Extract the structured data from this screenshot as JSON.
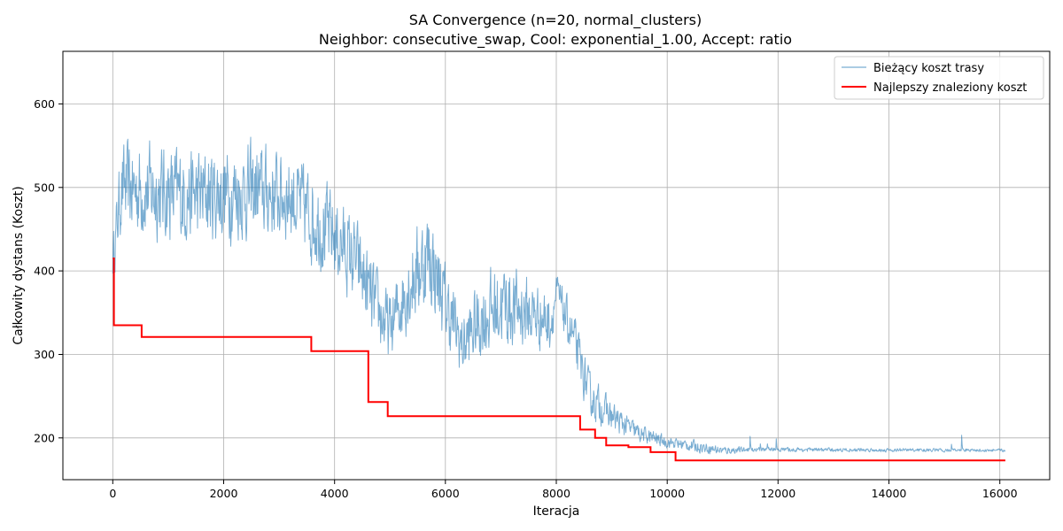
{
  "chart_data": {
    "type": "line",
    "title": "SA Convergence (n=20, normal_clusters)",
    "subtitle": "Neighbor: consecutive_swap, Cool: exponential_1.00, Accept: ratio",
    "xlabel": "Iteracja",
    "ylabel": "Całkowity dystans (Koszt)",
    "xlim": [
      -900,
      16900
    ],
    "ylim": [
      150,
      663
    ],
    "xticks": [
      0,
      2000,
      4000,
      6000,
      8000,
      10000,
      12000,
      14000,
      16000
    ],
    "yticks": [
      200,
      300,
      400,
      500,
      600
    ],
    "grid": true,
    "legend_position": "top-right",
    "series": [
      {
        "name": "Bieżący koszt trasy",
        "color": "#1f77b4",
        "opacity": 0.6,
        "kind": "noisy",
        "anchors": [
          [
            0,
            415,
            30
          ],
          [
            150,
            500,
            60
          ],
          [
            700,
            495,
            65
          ],
          [
            1500,
            490,
            65
          ],
          [
            2500,
            495,
            65
          ],
          [
            3200,
            490,
            60
          ],
          [
            3600,
            465,
            65
          ],
          [
            4000,
            440,
            60
          ],
          [
            4400,
            410,
            55
          ],
          [
            4700,
            360,
            55
          ],
          [
            5000,
            330,
            45
          ],
          [
            5300,
            380,
            60
          ],
          [
            5700,
            420,
            70
          ],
          [
            6000,
            360,
            55
          ],
          [
            6300,
            310,
            45
          ],
          [
            6600,
            340,
            55
          ],
          [
            7000,
            360,
            60
          ],
          [
            7500,
            350,
            50
          ],
          [
            7900,
            340,
            40
          ],
          [
            8000,
            375,
            25
          ],
          [
            8300,
            320,
            35
          ],
          [
            8600,
            250,
            30
          ],
          [
            9000,
            225,
            20
          ],
          [
            9500,
            205,
            12
          ],
          [
            10000,
            195,
            8
          ],
          [
            10500,
            190,
            8
          ],
          [
            11000,
            185,
            6
          ],
          [
            11500,
            186,
            3
          ],
          [
            12000,
            186,
            3
          ],
          [
            16100,
            185,
            2
          ]
        ]
      },
      {
        "name": "Najlepszy znaleziony koszt",
        "color": "#ff0000",
        "kind": "step",
        "steps": [
          [
            0,
            415
          ],
          [
            20,
            335
          ],
          [
            520,
            321
          ],
          [
            3580,
            304
          ],
          [
            4610,
            243
          ],
          [
            4960,
            226
          ],
          [
            8430,
            210
          ],
          [
            8700,
            200
          ],
          [
            8900,
            191
          ],
          [
            9300,
            189
          ],
          [
            9700,
            183
          ],
          [
            10150,
            173
          ],
          [
            16100,
            173
          ]
        ]
      }
    ]
  }
}
